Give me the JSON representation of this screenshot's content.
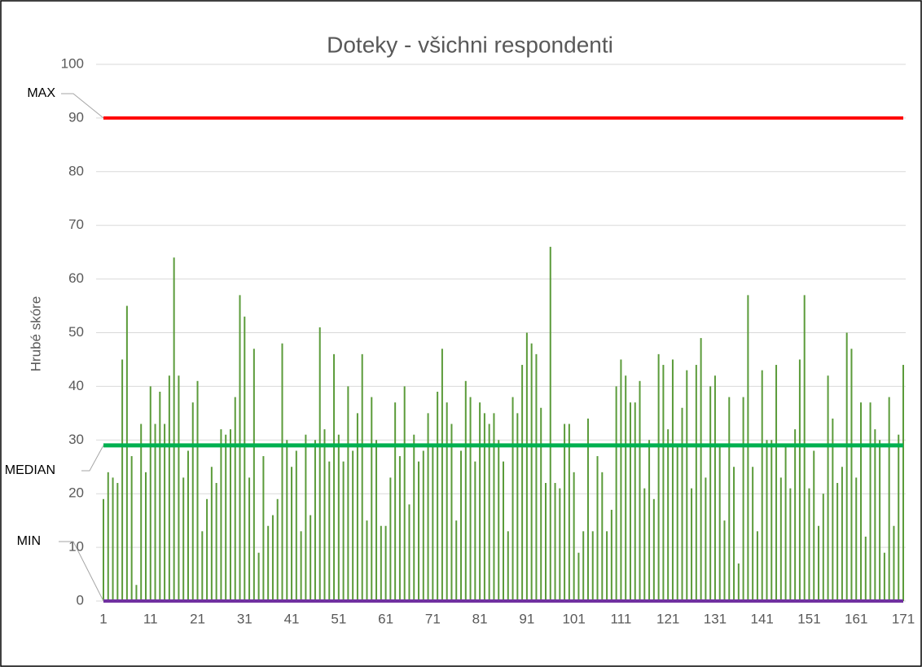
{
  "chart_data": {
    "type": "bar",
    "title": "Doteky - všichni respondenti",
    "y_label": "Hrubé skóre",
    "color": "#5b9b3a",
    "grid": true,
    "xlim": [
      1,
      171
    ],
    "xticks": [
      1,
      11,
      21,
      31,
      41,
      51,
      61,
      71,
      81,
      91,
      101,
      111,
      121,
      131,
      141,
      151,
      161,
      171
    ],
    "ylim": [
      0,
      100
    ],
    "yticks": [
      0,
      10,
      20,
      30,
      40,
      50,
      60,
      70,
      80,
      90,
      100
    ],
    "x": [
      1,
      2,
      3,
      4,
      5,
      6,
      7,
      8,
      9,
      10,
      11,
      12,
      13,
      14,
      15,
      16,
      17,
      18,
      19,
      20,
      21,
      22,
      23,
      24,
      25,
      26,
      27,
      28,
      29,
      30,
      31,
      32,
      33,
      34,
      35,
      36,
      37,
      38,
      39,
      40,
      41,
      42,
      43,
      44,
      45,
      46,
      47,
      48,
      49,
      50,
      51,
      52,
      53,
      54,
      55,
      56,
      57,
      58,
      59,
      60,
      61,
      62,
      63,
      64,
      65,
      66,
      67,
      68,
      69,
      70,
      71,
      72,
      73,
      74,
      75,
      76,
      77,
      78,
      79,
      80,
      81,
      82,
      83,
      84,
      85,
      86,
      87,
      88,
      89,
      90,
      91,
      92,
      93,
      94,
      95,
      96,
      97,
      98,
      99,
      100,
      101,
      102,
      103,
      104,
      105,
      106,
      107,
      108,
      109,
      110,
      111,
      112,
      113,
      114,
      115,
      116,
      117,
      118,
      119,
      120,
      121,
      122,
      123,
      124,
      125,
      126,
      127,
      128,
      129,
      130,
      131,
      132,
      133,
      134,
      135,
      136,
      137,
      138,
      139,
      140,
      141,
      142,
      143,
      144,
      145,
      146,
      147,
      148,
      149,
      150,
      151,
      152,
      153,
      154,
      155,
      156,
      157,
      158,
      159,
      160,
      161,
      162,
      163,
      164,
      165,
      166,
      167,
      168,
      169,
      170,
      171
    ],
    "values": [
      19,
      24,
      23,
      22,
      45,
      55,
      27,
      3,
      33,
      24,
      40,
      33,
      39,
      33,
      42,
      64,
      42,
      23,
      28,
      37,
      41,
      13,
      19,
      25,
      22,
      32,
      31,
      32,
      38,
      57,
      53,
      23,
      47,
      9,
      27,
      14,
      16,
      19,
      48,
      30,
      25,
      28,
      13,
      31,
      16,
      30,
      51,
      32,
      26,
      46,
      31,
      26,
      40,
      28,
      35,
      46,
      15,
      38,
      30,
      14,
      14,
      23,
      37,
      27,
      40,
      18,
      31,
      26,
      28,
      35,
      29,
      39,
      47,
      37,
      33,
      15,
      28,
      41,
      38,
      26,
      37,
      35,
      33,
      35,
      30,
      26,
      13,
      38,
      35,
      44,
      50,
      48,
      46,
      36,
      22,
      66,
      22,
      21,
      33,
      33,
      24,
      9,
      13,
      34,
      13,
      27,
      24,
      13,
      17,
      40,
      45,
      42,
      37,
      37,
      41,
      21,
      30,
      19,
      46,
      44,
      32,
      45,
      29,
      36,
      43,
      21,
      44,
      49,
      23,
      40,
      42,
      29,
      15,
      38,
      25,
      7,
      38,
      57,
      25,
      13,
      43,
      30,
      30,
      44,
      23,
      29,
      21,
      32,
      45,
      57,
      21,
      28,
      14,
      20,
      42,
      34,
      22,
      25,
      50,
      47,
      23,
      37,
      12,
      37,
      32,
      30,
      9,
      38,
      14,
      31,
      44
    ],
    "reference_lines": [
      {
        "label": "MAX",
        "value": 90,
        "color": "#ff0000"
      },
      {
        "label": "MEDIAN",
        "value": 29,
        "color": "#00b050"
      },
      {
        "label": "MIN",
        "value": 0,
        "color": "#7030a0"
      }
    ]
  }
}
